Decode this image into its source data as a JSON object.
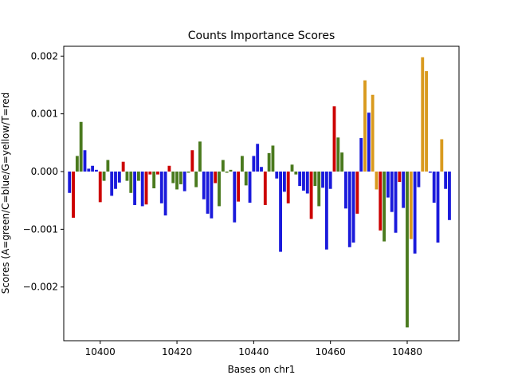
{
  "chart_data": {
    "type": "bar",
    "title": "Counts Importance Scores",
    "xlabel": "Bases on chr1",
    "ylabel": "Scores (A=green/C=blue/G=yellow/T=red",
    "xlim": [
      10390.5,
      10493.5
    ],
    "ylim": [
      -0.00293,
      0.00217
    ],
    "grid": false,
    "x_ticks": [
      10400,
      10420,
      10440,
      10460,
      10480
    ],
    "x_tick_labels": [
      "10400",
      "10420",
      "10440",
      "10460",
      "10480"
    ],
    "y_ticks": [
      -0.002,
      -0.001,
      0.0,
      0.001,
      0.002
    ],
    "y_tick_labels": [
      "−0.002",
      "−0.001",
      "0.000",
      "0.001",
      "0.002"
    ],
    "base_colors": {
      "A": "#4a7a1e",
      "C": "#1a1adb",
      "G": "#d99a1e",
      "T": "#cc0000"
    },
    "bars": [
      {
        "x": 10392,
        "base": "C",
        "value": -0.00037
      },
      {
        "x": 10393,
        "base": "T",
        "value": -0.0008
      },
      {
        "x": 10394,
        "base": "A",
        "value": 0.00027
      },
      {
        "x": 10395,
        "base": "A",
        "value": 0.00086
      },
      {
        "x": 10396,
        "base": "C",
        "value": 0.00037
      },
      {
        "x": 10397,
        "base": "C",
        "value": 5e-05
      },
      {
        "x": 10398,
        "base": "C",
        "value": 0.0001
      },
      {
        "x": 10399,
        "base": "C",
        "value": 3e-05
      },
      {
        "x": 10400,
        "base": "T",
        "value": -0.00053
      },
      {
        "x": 10401,
        "base": "A",
        "value": -0.00016
      },
      {
        "x": 10402,
        "base": "A",
        "value": 0.0002
      },
      {
        "x": 10403,
        "base": "C",
        "value": -0.00042
      },
      {
        "x": 10404,
        "base": "C",
        "value": -0.0003
      },
      {
        "x": 10405,
        "base": "C",
        "value": -0.00019
      },
      {
        "x": 10406,
        "base": "T",
        "value": 0.00017
      },
      {
        "x": 10407,
        "base": "A",
        "value": -0.00016
      },
      {
        "x": 10408,
        "base": "A",
        "value": -0.00037
      },
      {
        "x": 10409,
        "base": "C",
        "value": -0.00058
      },
      {
        "x": 10410,
        "base": "A",
        "value": -0.00016
      },
      {
        "x": 10411,
        "base": "C",
        "value": -0.0006
      },
      {
        "x": 10412,
        "base": "T",
        "value": -0.00057
      },
      {
        "x": 10413,
        "base": "T",
        "value": -5e-05
      },
      {
        "x": 10414,
        "base": "A",
        "value": -0.00029
      },
      {
        "x": 10415,
        "base": "T",
        "value": -5e-05
      },
      {
        "x": 10416,
        "base": "C",
        "value": -0.00055
      },
      {
        "x": 10417,
        "base": "C",
        "value": -0.00076
      },
      {
        "x": 10418,
        "base": "T",
        "value": 0.0001
      },
      {
        "x": 10419,
        "base": "A",
        "value": -0.0002
      },
      {
        "x": 10420,
        "base": "A",
        "value": -0.00031
      },
      {
        "x": 10421,
        "base": "A",
        "value": -0.00022
      },
      {
        "x": 10422,
        "base": "C",
        "value": -0.00034
      },
      {
        "x": 10423,
        "base": "A",
        "value": -2e-05
      },
      {
        "x": 10424,
        "base": "T",
        "value": 0.00037
      },
      {
        "x": 10425,
        "base": "A",
        "value": -0.00027
      },
      {
        "x": 10426,
        "base": "A",
        "value": 0.00052
      },
      {
        "x": 10427,
        "base": "C",
        "value": -0.00048
      },
      {
        "x": 10428,
        "base": "C",
        "value": -0.00073
      },
      {
        "x": 10429,
        "base": "C",
        "value": -0.00081
      },
      {
        "x": 10430,
        "base": "T",
        "value": -0.0002
      },
      {
        "x": 10431,
        "base": "A",
        "value": -0.0006
      },
      {
        "x": 10432,
        "base": "A",
        "value": 0.0002
      },
      {
        "x": 10433,
        "base": "A",
        "value": -2e-05
      },
      {
        "x": 10434,
        "base": "A",
        "value": 3e-05
      },
      {
        "x": 10435,
        "base": "C",
        "value": -0.00088
      },
      {
        "x": 10436,
        "base": "T",
        "value": -0.00052
      },
      {
        "x": 10437,
        "base": "A",
        "value": 0.00027
      },
      {
        "x": 10438,
        "base": "A",
        "value": -0.00024
      },
      {
        "x": 10439,
        "base": "C",
        "value": -0.00054
      },
      {
        "x": 10440,
        "base": "C",
        "value": 0.00027
      },
      {
        "x": 10441,
        "base": "C",
        "value": 0.00048
      },
      {
        "x": 10442,
        "base": "C",
        "value": 8e-05
      },
      {
        "x": 10443,
        "base": "T",
        "value": -0.00058
      },
      {
        "x": 10444,
        "base": "A",
        "value": 0.00032
      },
      {
        "x": 10445,
        "base": "A",
        "value": 0.00045
      },
      {
        "x": 10446,
        "base": "C",
        "value": -0.00012
      },
      {
        "x": 10447,
        "base": "C",
        "value": -0.00139
      },
      {
        "x": 10448,
        "base": "C",
        "value": -0.00035
      },
      {
        "x": 10449,
        "base": "T",
        "value": -0.00055
      },
      {
        "x": 10450,
        "base": "A",
        "value": 0.00012
      },
      {
        "x": 10451,
        "base": "A",
        "value": -5e-05
      },
      {
        "x": 10452,
        "base": "C",
        "value": -0.00025
      },
      {
        "x": 10453,
        "base": "C",
        "value": -0.00033
      },
      {
        "x": 10454,
        "base": "C",
        "value": -0.00038
      },
      {
        "x": 10455,
        "base": "T",
        "value": -0.00082
      },
      {
        "x": 10456,
        "base": "A",
        "value": -0.00025
      },
      {
        "x": 10457,
        "base": "A",
        "value": -0.0006
      },
      {
        "x": 10458,
        "base": "C",
        "value": -0.00028
      },
      {
        "x": 10459,
        "base": "C",
        "value": -0.00135
      },
      {
        "x": 10460,
        "base": "C",
        "value": -0.0003
      },
      {
        "x": 10461,
        "base": "T",
        "value": 0.00113
      },
      {
        "x": 10462,
        "base": "A",
        "value": 0.00059
      },
      {
        "x": 10463,
        "base": "A",
        "value": 0.00033
      },
      {
        "x": 10464,
        "base": "C",
        "value": -0.00064
      },
      {
        "x": 10465,
        "base": "C",
        "value": -0.00131
      },
      {
        "x": 10466,
        "base": "C",
        "value": -0.00123
      },
      {
        "x": 10467,
        "base": "T",
        "value": -0.00073
      },
      {
        "x": 10468,
        "base": "C",
        "value": 0.00058
      },
      {
        "x": 10469,
        "base": "G",
        "value": 0.00158
      },
      {
        "x": 10470,
        "base": "C",
        "value": 0.00102
      },
      {
        "x": 10471,
        "base": "G",
        "value": 0.00133
      },
      {
        "x": 10472,
        "base": "G",
        "value": -0.00031
      },
      {
        "x": 10473,
        "base": "T",
        "value": -0.00102
      },
      {
        "x": 10474,
        "base": "A",
        "value": -0.00121
      },
      {
        "x": 10475,
        "base": "C",
        "value": -0.00045
      },
      {
        "x": 10476,
        "base": "C",
        "value": -0.0007
      },
      {
        "x": 10477,
        "base": "C",
        "value": -0.00106
      },
      {
        "x": 10478,
        "base": "T",
        "value": -0.00018
      },
      {
        "x": 10479,
        "base": "C",
        "value": -0.00063
      },
      {
        "x": 10480,
        "base": "A",
        "value": -0.0027
      },
      {
        "x": 10481,
        "base": "G",
        "value": -0.00117
      },
      {
        "x": 10482,
        "base": "C",
        "value": -0.00142
      },
      {
        "x": 10483,
        "base": "C",
        "value": -0.00027
      },
      {
        "x": 10484,
        "base": "G",
        "value": 0.00198
      },
      {
        "x": 10485,
        "base": "G",
        "value": 0.00174
      },
      {
        "x": 10486,
        "base": "C",
        "value": -2e-05
      },
      {
        "x": 10487,
        "base": "C",
        "value": -0.00054
      },
      {
        "x": 10488,
        "base": "C",
        "value": -0.00123
      },
      {
        "x": 10489,
        "base": "G",
        "value": 0.00056
      },
      {
        "x": 10490,
        "base": "C",
        "value": -0.0003
      },
      {
        "x": 10491,
        "base": "C",
        "value": -0.00084
      }
    ]
  }
}
